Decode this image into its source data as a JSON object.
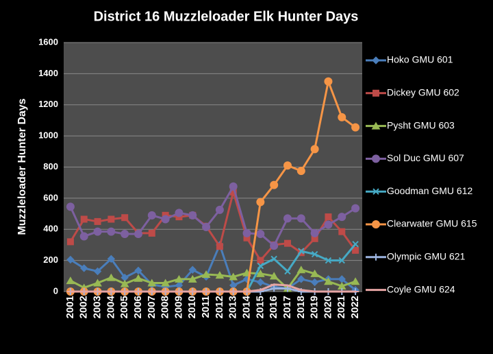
{
  "chart_data": {
    "type": "line",
    "title": "District 16 Muzzleloader Elk Hunter Days",
    "y_label": "Muzzleloader Hunter Days",
    "categories": [
      "2001",
      "2002",
      "2003",
      "2004",
      "2005",
      "2006",
      "2007",
      "2008",
      "2009",
      "2010",
      "2011",
      "2012",
      "2013",
      "2014",
      "2015",
      "2016",
      "2017",
      "2018",
      "2019",
      "2020",
      "2021",
      "2022"
    ],
    "ylim": [
      0,
      1600
    ],
    "yticks": [
      0,
      200,
      400,
      600,
      800,
      1000,
      1200,
      1400,
      1600
    ],
    "grid": true,
    "legend": "right",
    "series": [
      {
        "name": "Hoko GMU 601",
        "color": "#4a7ebb",
        "marker": "diamond",
        "values": [
          205,
          150,
          130,
          210,
          90,
          135,
          45,
          30,
          40,
          140,
          95,
          300,
          40,
          80,
          60,
          30,
          20,
          80,
          60,
          80,
          80,
          10
        ]
      },
      {
        "name": "Dickey GMU 602",
        "color": "#be4b48",
        "marker": "square",
        "values": [
          320,
          465,
          450,
          465,
          475,
          375,
          375,
          490,
          480,
          490,
          420,
          290,
          640,
          345,
          200,
          300,
          310,
          250,
          340,
          480,
          385,
          265
        ]
      },
      {
        "name": "Pysht GMU 603",
        "color": "#98b954",
        "marker": "triangle",
        "values": [
          70,
          25,
          55,
          90,
          50,
          85,
          55,
          55,
          80,
          80,
          110,
          105,
          95,
          120,
          115,
          100,
          20,
          140,
          115,
          65,
          35,
          65
        ]
      },
      {
        "name": "Sol Duc GMU 607",
        "color": "#7d60a0",
        "marker": "circle",
        "values": [
          545,
          355,
          385,
          385,
          370,
          370,
          490,
          465,
          505,
          490,
          415,
          525,
          675,
          375,
          370,
          295,
          470,
          470,
          375,
          430,
          480,
          535
        ]
      },
      {
        "name": "Goodman GMU 612",
        "color": "#46aac5",
        "marker": "x",
        "values": [
          null,
          null,
          null,
          null,
          null,
          null,
          null,
          null,
          null,
          null,
          null,
          null,
          null,
          0,
          165,
          210,
          130,
          260,
          240,
          200,
          200,
          305
        ]
      },
      {
        "name": "Clearwater GMU 615",
        "color": "#f69546",
        "marker": "circle",
        "values": [
          0,
          0,
          0,
          0,
          0,
          0,
          0,
          0,
          0,
          0,
          0,
          0,
          0,
          0,
          575,
          685,
          810,
          775,
          915,
          1350,
          1120,
          1055
        ]
      },
      {
        "name": "Olympic GMU 621",
        "color": "#9cb4e0",
        "marker": "plus",
        "values": [
          0,
          0,
          0,
          0,
          0,
          0,
          0,
          0,
          0,
          0,
          0,
          0,
          0,
          0,
          0,
          20,
          20,
          0,
          0,
          0,
          0,
          0
        ]
      },
      {
        "name": "Coyle GMU 624",
        "color": "#e6a5a4",
        "marker": "dash",
        "values": [
          0,
          0,
          0,
          0,
          0,
          0,
          0,
          0,
          0,
          0,
          0,
          0,
          0,
          0,
          10,
          45,
          40,
          10,
          0,
          0,
          0,
          0
        ]
      }
    ]
  }
}
